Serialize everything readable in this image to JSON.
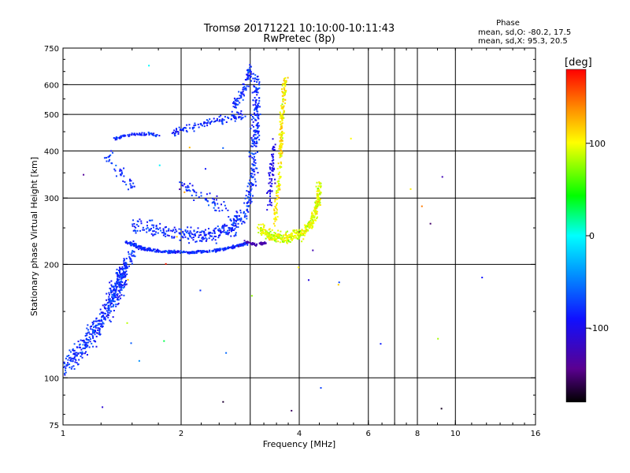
{
  "chart_data": {
    "type": "scatter",
    "title": "Tromsø 20171221 10:10:00-10:11:43",
    "subtitle": "RwPretec (8p)",
    "xlabel": "Frequency [MHz]",
    "ylabel": "Stationary phase Virtual Height [km]",
    "x_scale": "log2",
    "y_scale": "log",
    "xlim": [
      1,
      16
    ],
    "ylim": [
      75,
      750
    ],
    "x_ticks": [
      1,
      2,
      4,
      6,
      8,
      10,
      16
    ],
    "x_tick_labels": [
      "1",
      "2",
      "4",
      "6",
      "8",
      "10",
      "16"
    ],
    "x_gridlines": [
      1,
      2,
      3,
      4,
      6,
      7,
      8,
      10
    ],
    "y_ticks": [
      75,
      100,
      200,
      300,
      400,
      500,
      600,
      750
    ],
    "y_tick_labels": [
      "75",
      "100",
      "200",
      "300",
      "400",
      "500",
      "600",
      "750"
    ],
    "y_gridlines": [
      100,
      200,
      300,
      400,
      500,
      600
    ],
    "grid": true,
    "phase_info": {
      "heading": "Phase",
      "line_o": "mean, sd,O: -80.2, 17.5",
      "line_x": "mean, sd,X:  95.3, 20.5"
    },
    "colorbar": {
      "label": "[deg]",
      "range": [
        -180,
        180
      ],
      "tick_values": [
        100,
        0,
        -100
      ],
      "tick_labels": [
        "100",
        "0",
        "-100"
      ],
      "colormap": "rainbow (black-purple-blue-cyan-green-yellow-red)"
    },
    "series": [
      {
        "name": "O-mode trace (phase ~ -80 deg)",
        "description": "main trace from ~1.0 MHz/105 km rising to 1.45 MHz/150-200 km, floor ~215-240 km from 1.5 to 3.2 MHz, upward branches to ~640 km near 3 MHz",
        "points": [
          [
            1.0,
            105
          ],
          [
            1.1,
            118
          ],
          [
            1.2,
            135
          ],
          [
            1.3,
            160
          ],
          [
            1.4,
            190
          ],
          [
            1.5,
            225
          ],
          [
            1.7,
            218
          ],
          [
            2.0,
            216
          ],
          [
            2.3,
            218
          ],
          [
            2.6,
            222
          ],
          [
            2.9,
            230
          ],
          [
            3.0,
            300
          ],
          [
            3.05,
            450
          ],
          [
            3.1,
            630
          ]
        ],
        "mean_phase": -80.2,
        "sd_phase": 17.5
      },
      {
        "name": "X-mode trace (phase ~ +95 deg)",
        "description": "yellow/orange trace 3.2-4.5 MHz at ~235-300 km with branch rising to ~620 km near 3.6 MHz",
        "points": [
          [
            3.2,
            245
          ],
          [
            3.5,
            235
          ],
          [
            3.8,
            238
          ],
          [
            4.1,
            250
          ],
          [
            4.4,
            280
          ],
          [
            4.5,
            320
          ],
          [
            3.6,
            400
          ],
          [
            3.6,
            500
          ],
          [
            3.65,
            620
          ]
        ],
        "mean_phase": 95.3,
        "sd_phase": 20.5
      }
    ]
  }
}
